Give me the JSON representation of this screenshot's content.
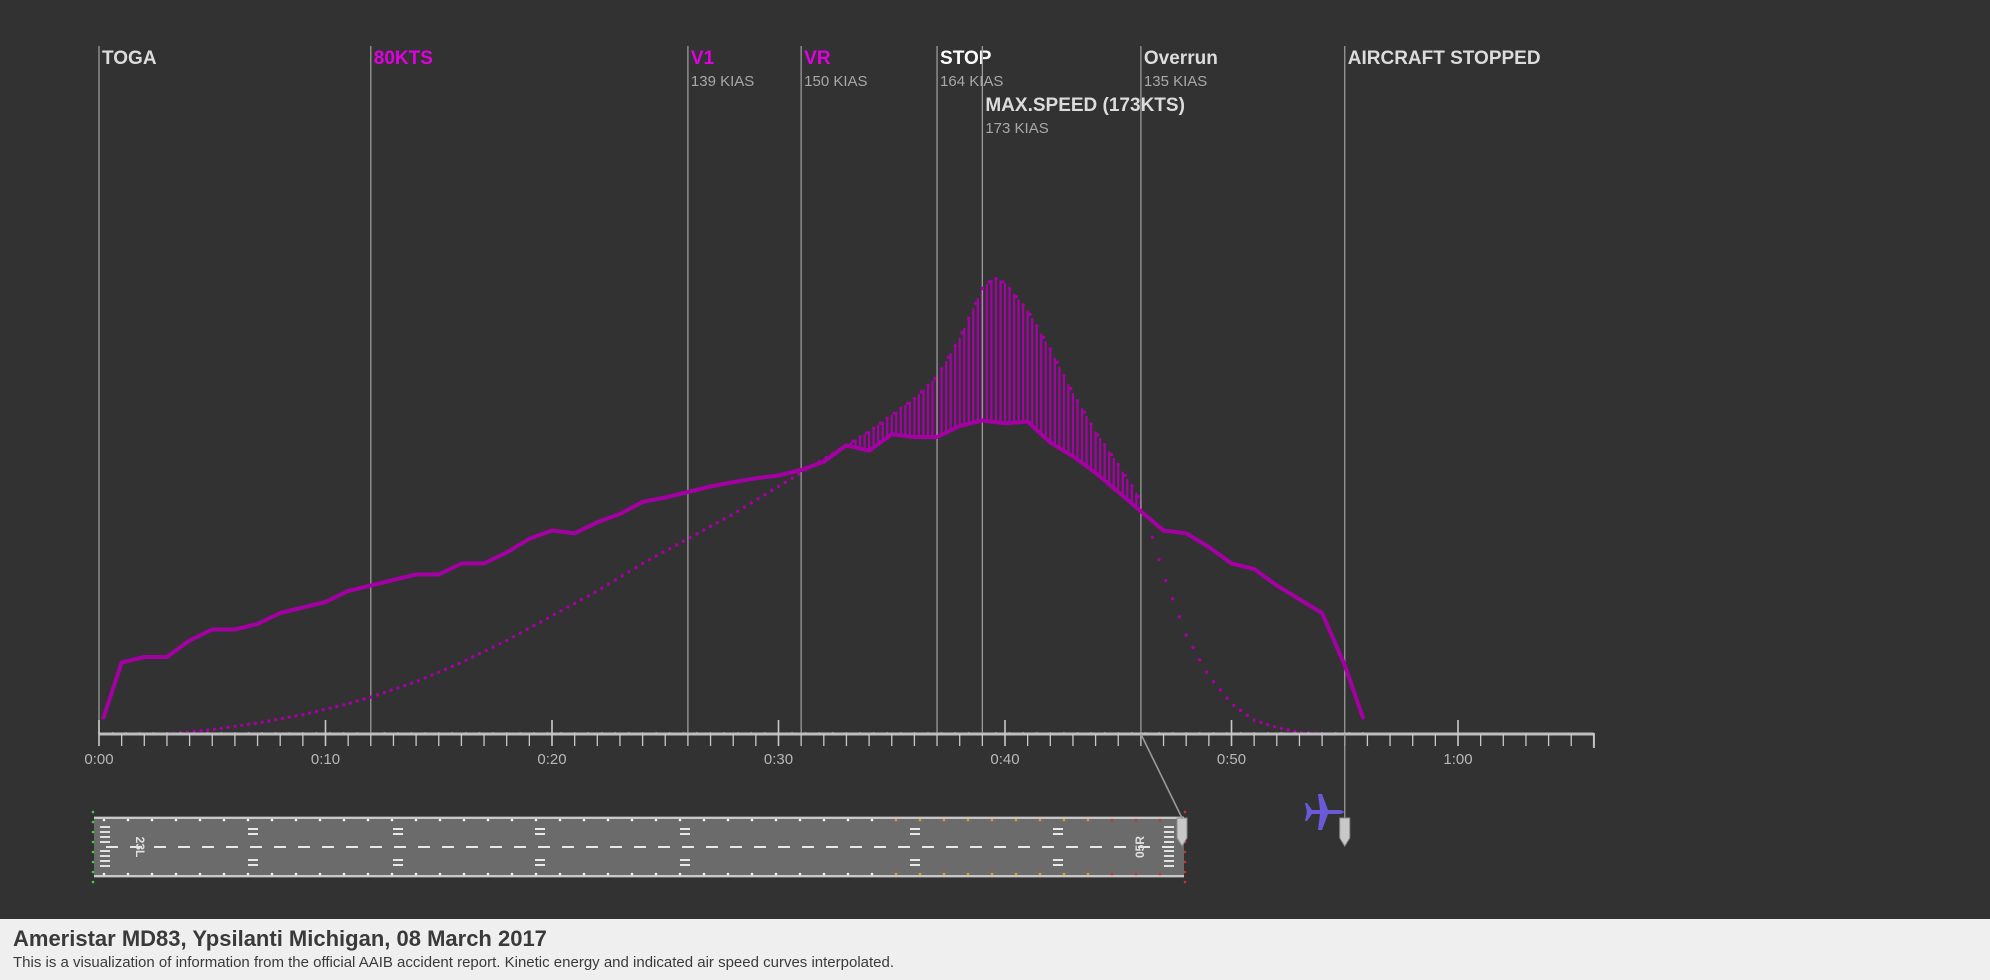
{
  "chart_data": {
    "type": "line",
    "x_unit": "m:ss",
    "xlim": [
      0,
      66
    ],
    "x_ticks": [
      "0:00",
      "0:10",
      "0:20",
      "0:30",
      "0:40",
      "0:50",
      "1:00"
    ],
    "x_tick_values": [
      0,
      10,
      20,
      30,
      40,
      50,
      60
    ],
    "events": [
      {
        "label": "TOGA",
        "sub": "",
        "t": 0,
        "color": "#dcdcdc",
        "row": 0
      },
      {
        "label": "80KTS",
        "sub": "",
        "t": 12,
        "color": "#e000e0",
        "row": 0
      },
      {
        "label": "V1",
        "sub": "139 KIAS",
        "t": 26,
        "color": "#e000e0",
        "row": 0
      },
      {
        "label": "VR",
        "sub": "150 KIAS",
        "t": 31,
        "color": "#e000e0",
        "row": 0
      },
      {
        "label": "STOP",
        "sub": "164 KIAS",
        "t": 37,
        "color": "#ffffff",
        "row": 0
      },
      {
        "label": "MAX.SPEED (173KTS)",
        "sub": "173 KIAS",
        "t": 39,
        "color": "#dcdcdc",
        "row": 1
      },
      {
        "label": "Overrun",
        "sub": "135 KIAS",
        "t": 46,
        "color": "#dcdcdc",
        "row": 0
      },
      {
        "label": "AIRCRAFT STOPPED",
        "sub": "",
        "t": 55,
        "color": "#dcdcdc",
        "row": 0
      }
    ],
    "series": [
      {
        "style": "solid",
        "color": "#a400a4",
        "points": [
          [
            0.2,
            3
          ],
          [
            1,
            13
          ],
          [
            2,
            14
          ],
          [
            3,
            14
          ],
          [
            4,
            17
          ],
          [
            5,
            19
          ],
          [
            6,
            19
          ],
          [
            7,
            20
          ],
          [
            8,
            22
          ],
          [
            9,
            23
          ],
          [
            10,
            24
          ],
          [
            11,
            26
          ],
          [
            12,
            27
          ],
          [
            13,
            28
          ],
          [
            14,
            29
          ],
          [
            15,
            29
          ],
          [
            16,
            31
          ],
          [
            17,
            31
          ],
          [
            18,
            33
          ],
          [
            19,
            35.5
          ],
          [
            20,
            37
          ],
          [
            21,
            36.5
          ],
          [
            22,
            38.5
          ],
          [
            23,
            40
          ],
          [
            24,
            42.2
          ],
          [
            25,
            43
          ],
          [
            26,
            44
          ],
          [
            27,
            45
          ],
          [
            28,
            45.8
          ],
          [
            29,
            46.5
          ],
          [
            30,
            47
          ],
          [
            31,
            48
          ],
          [
            32,
            49.5
          ],
          [
            33,
            52.5
          ],
          [
            34,
            51.5
          ],
          [
            35,
            54.5
          ],
          [
            36,
            54
          ],
          [
            37,
            54
          ],
          [
            38,
            56
          ],
          [
            39,
            57
          ],
          [
            40,
            56.5
          ],
          [
            41,
            56.8
          ],
          [
            42,
            53
          ],
          [
            43,
            50.5
          ],
          [
            44,
            47.5
          ],
          [
            45,
            44
          ],
          [
            46,
            40.5
          ],
          [
            47,
            37
          ],
          [
            48,
            36.5
          ],
          [
            49,
            34
          ],
          [
            50,
            31
          ],
          [
            51,
            30
          ],
          [
            52,
            27
          ],
          [
            53,
            24.5
          ],
          [
            54,
            22
          ],
          [
            55,
            12.5
          ],
          [
            55.8,
            3
          ]
        ]
      },
      {
        "style": "dotted",
        "color": "#a400a4",
        "points": [
          [
            3,
            0
          ],
          [
            5,
            0.8
          ],
          [
            7,
            2
          ],
          [
            9,
            3.5
          ],
          [
            11,
            5.5
          ],
          [
            12,
            6.7
          ],
          [
            14,
            9.5
          ],
          [
            16,
            13
          ],
          [
            18,
            17
          ],
          [
            20,
            21.5
          ],
          [
            22,
            26
          ],
          [
            24,
            31
          ],
          [
            26,
            35.5
          ],
          [
            28,
            40
          ],
          [
            30,
            45
          ],
          [
            32,
            50
          ],
          [
            34,
            55
          ],
          [
            36,
            61
          ],
          [
            37,
            65
          ],
          [
            38,
            72
          ],
          [
            39,
            81
          ],
          [
            39.5,
            83
          ],
          [
            40,
            82
          ],
          [
            41,
            77
          ],
          [
            42,
            70
          ],
          [
            43,
            62
          ],
          [
            44,
            55
          ],
          [
            45,
            49
          ],
          [
            46,
            42.5
          ],
          [
            47,
            29
          ],
          [
            48,
            18
          ],
          [
            49,
            10.5
          ],
          [
            50,
            5.5
          ],
          [
            51,
            2.5
          ],
          [
            52,
            1.2
          ],
          [
            53,
            0.3
          ],
          [
            54,
            0
          ]
        ]
      }
    ],
    "ylim": [
      0,
      100
    ]
  },
  "footer": {
    "title": "Ameristar MD83, Ypsilanti Michigan, 08 March 2017",
    "subtitle": "This is a visualization of information from the official AAIB accident report. Kinetic energy and indicated air speed curves interpolated."
  },
  "runway": {
    "label_left": "23L",
    "label_right": "05R",
    "aircraft_icon": "airplane-icon",
    "marker_icon": "runway-position-marker-icon"
  }
}
